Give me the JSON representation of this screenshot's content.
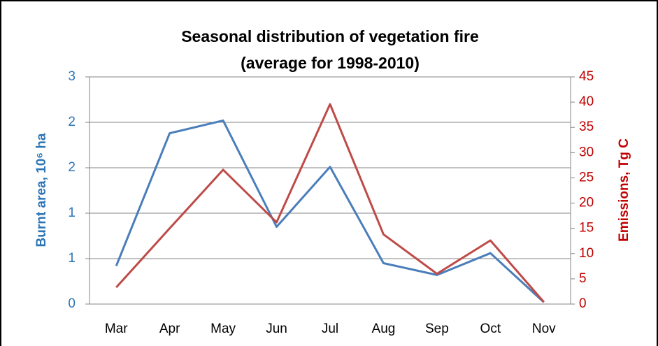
{
  "chart_data": {
    "type": "line",
    "title": "Seasonal distribution of vegetation fire",
    "subtitle": "(average for 1998-2010)",
    "y_label": "Burnt area, 10⁶ ha",
    "y2_label": "Emissions, Tg C",
    "categories": [
      "Mar",
      "Apr",
      "May",
      "Jun",
      "Jul",
      "Aug",
      "Sep",
      "Oct",
      "Nov"
    ],
    "series": [
      {
        "name": "Burnt area",
        "color": "#4a7ebb",
        "values": [
          0.42,
          1.88,
          2.02,
          0.85,
          1.51,
          0.45,
          0.32,
          0.56,
          0.02
        ]
      },
      {
        "name": "Emissions",
        "color": "#be4b48",
        "axis": "y2",
        "values": [
          3.3,
          15,
          26.6,
          16.2,
          39.6,
          13.8,
          6,
          12.6,
          0.4
        ]
      }
    ],
    "ylim": [
      0,
      2.5
    ],
    "yticks": [
      0,
      {
        "value": 0.5,
        "label": "1"
      },
      1,
      {
        "value": 1.5,
        "label": "2"
      },
      2,
      {
        "value": 2.5,
        "label": "3"
      }
    ],
    "y2lim": [
      0,
      45
    ],
    "y2ticks": [
      0,
      5,
      10,
      15,
      20,
      25,
      30,
      35,
      40,
      45
    ],
    "grid": true
  }
}
